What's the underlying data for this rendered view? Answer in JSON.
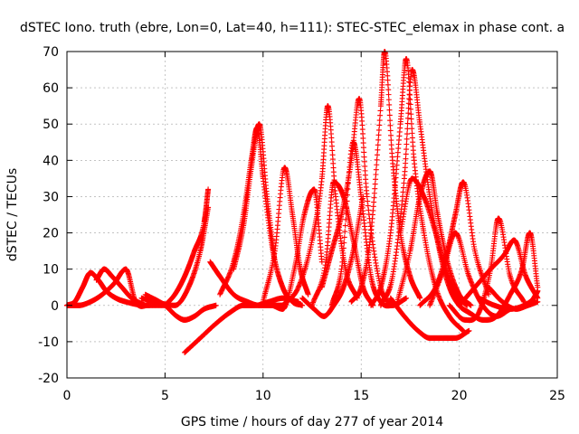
{
  "chart_data": {
    "type": "scatter",
    "title": "dSTEC Iono. truth (ebre, Lon=0, Lat=40, h=111): STEC-STEC_elemax in phase cont. a",
    "xlabel": "GPS time / hours of day 277 of year 2014",
    "ylabel": "dSTEC  / TECUs",
    "xlim": [
      0,
      25
    ],
    "ylim": [
      -20,
      70
    ],
    "xticks": [
      0,
      5,
      10,
      15,
      20,
      25
    ],
    "yticks": [
      -20,
      -10,
      0,
      10,
      20,
      30,
      40,
      50,
      60,
      70
    ],
    "grid": true,
    "legend": "none",
    "marker": "plus",
    "color": "#ff0000",
    "series": [
      {
        "x": [
          0.0,
          0.6,
          1.2,
          1.8,
          2.4,
          3.0,
          3.5,
          4.2
        ],
        "y": [
          0,
          0,
          1,
          3,
          6,
          10,
          1,
          0
        ]
      },
      {
        "x": [
          0.0,
          0.4,
          0.8,
          1.2,
          1.6,
          2.0,
          2.5,
          3.0,
          4.0,
          5.0
        ],
        "y": [
          0,
          1,
          5,
          9,
          7,
          4,
          2,
          1,
          0,
          0
        ]
      },
      {
        "x": [
          1.5,
          1.9,
          2.3,
          2.8,
          3.3,
          4.0
        ],
        "y": [
          7,
          10,
          8,
          5,
          2,
          0
        ]
      },
      {
        "x": [
          3.8,
          4.5,
          5.5,
          6.2,
          6.8,
          7.2
        ],
        "y": [
          2,
          1,
          0,
          5,
          15,
          27
        ]
      },
      {
        "x": [
          4.0,
          5.0,
          5.6,
          6.0,
          6.5,
          7.0,
          7.6
        ],
        "y": [
          3,
          0,
          -3,
          -4,
          -3,
          -1,
          0
        ]
      },
      {
        "x": [
          5.0,
          5.5,
          6.0,
          6.5,
          7.0,
          7.2
        ],
        "y": [
          0,
          3,
          8,
          15,
          23,
          32
        ]
      },
      {
        "x": [
          6.0,
          6.8,
          7.6,
          8.3,
          9.0,
          9.6,
          10.3,
          11.0,
          11.8
        ],
        "y": [
          -13,
          -9,
          -5,
          -2,
          0,
          0,
          1,
          2,
          1
        ]
      },
      {
        "x": [
          7.3,
          7.8,
          8.5,
          9.2,
          9.8,
          10.4,
          11.0
        ],
        "y": [
          12,
          8,
          3,
          1,
          0,
          0,
          0
        ]
      },
      {
        "x": [
          7.8,
          8.5,
          9.0,
          9.4,
          9.7,
          10.0,
          10.5,
          11.0,
          11.5,
          12.0
        ],
        "y": [
          3,
          12,
          25,
          40,
          49,
          35,
          15,
          5,
          1,
          0
        ]
      },
      {
        "x": [
          8.5,
          9.0,
          9.4,
          9.8,
          10.2,
          10.6
        ],
        "y": [
          10,
          22,
          38,
          50,
          30,
          12
        ]
      },
      {
        "x": [
          10.0,
          10.6,
          11.1,
          11.5,
          11.9,
          12.3
        ],
        "y": [
          1,
          15,
          38,
          25,
          10,
          3
        ]
      },
      {
        "x": [
          10.5,
          11.0,
          11.6,
          12.1,
          12.6,
          13.0
        ],
        "y": [
          0,
          -1,
          10,
          25,
          32,
          12
        ]
      },
      {
        "x": [
          11.0,
          11.8,
          12.5,
          13.0,
          13.3,
          13.7,
          14.2,
          14.8
        ],
        "y": [
          0,
          5,
          18,
          35,
          55,
          30,
          10,
          2
        ]
      },
      {
        "x": [
          12.0,
          12.6,
          13.1,
          13.6,
          14.1,
          14.6,
          15.1
        ],
        "y": [
          2,
          -1,
          -3,
          0,
          5,
          15,
          30
        ]
      },
      {
        "x": [
          12.5,
          13.2,
          13.6,
          14.1,
          14.6,
          15.1,
          15.6
        ],
        "y": [
          0,
          12,
          34,
          30,
          18,
          5,
          0
        ]
      },
      {
        "x": [
          13.0,
          13.5,
          14.0,
          14.5,
          14.9,
          15.3,
          16.0,
          16.5
        ],
        "y": [
          5,
          15,
          25,
          40,
          57,
          30,
          5,
          0
        ]
      },
      {
        "x": [
          13.5,
          14.0,
          14.6,
          15.0,
          15.5,
          16.0,
          16.6,
          17.3
        ],
        "y": [
          0,
          10,
          45,
          30,
          8,
          1,
          0,
          2
        ]
      },
      {
        "x": [
          14.5,
          15.0,
          15.5,
          16.0,
          16.2,
          16.6,
          17.0,
          17.5,
          18.0
        ],
        "y": [
          1,
          5,
          20,
          55,
          70,
          40,
          20,
          8,
          2
        ]
      },
      {
        "x": [
          15.5,
          16.0,
          16.5,
          17.0,
          17.3,
          17.7,
          18.2,
          18.8,
          19.5,
          20.2
        ],
        "y": [
          0,
          5,
          20,
          50,
          68,
          40,
          20,
          5,
          -3,
          -7
        ]
      },
      {
        "x": [
          16.0,
          16.6,
          17.2,
          17.6,
          18.0,
          18.5,
          19.0,
          19.5,
          20.0,
          20.5
        ],
        "y": [
          0,
          8,
          35,
          65,
          50,
          30,
          15,
          5,
          0,
          -2
        ]
      },
      {
        "x": [
          16.5,
          17.2,
          17.9,
          18.5,
          19.2,
          19.8,
          20.5
        ],
        "y": [
          2,
          -3,
          -7,
          -9,
          -9,
          -9,
          -7
        ]
      },
      {
        "x": [
          16.8,
          17.5,
          18.0,
          18.5,
          18.9,
          19.4,
          20.0,
          20.6
        ],
        "y": [
          0,
          15,
          30,
          37,
          25,
          12,
          3,
          0
        ]
      },
      {
        "x": [
          17.0,
          17.6,
          18.2,
          18.8,
          19.3,
          19.8,
          20.4
        ],
        "y": [
          20,
          35,
          30,
          20,
          10,
          3,
          0
        ]
      },
      {
        "x": [
          18.0,
          18.8,
          19.4,
          19.8,
          20.2,
          20.8,
          21.5
        ],
        "y": [
          0,
          5,
          15,
          25,
          34,
          15,
          3
        ]
      },
      {
        "x": [
          18.5,
          19.2,
          19.8,
          20.5,
          21.2,
          21.9,
          22.6
        ],
        "y": [
          0,
          10,
          20,
          8,
          0,
          -3,
          -1
        ]
      },
      {
        "x": [
          19.5,
          20.3,
          21.0,
          21.6,
          22.0,
          22.6,
          23.3
        ],
        "y": [
          0,
          -4,
          -2,
          10,
          24,
          8,
          1
        ]
      },
      {
        "x": [
          20.0,
          20.8,
          21.6,
          22.3,
          22.8,
          23.4,
          24.0
        ],
        "y": [
          0,
          5,
          10,
          14,
          18,
          8,
          2
        ]
      },
      {
        "x": [
          20.5,
          21.2,
          21.9,
          22.6,
          23.2,
          23.6,
          24.0
        ],
        "y": [
          -2,
          -4,
          -3,
          3,
          10,
          20,
          5
        ]
      },
      {
        "x": [
          21.0,
          21.8,
          22.6,
          23.3,
          23.8,
          24.0
        ],
        "y": [
          2,
          0,
          -1,
          0,
          2,
          4
        ]
      },
      {
        "x": [
          21.5,
          22.2,
          22.9,
          23.5,
          24.0
        ],
        "y": [
          5,
          1,
          -1,
          0,
          1
        ]
      }
    ]
  }
}
